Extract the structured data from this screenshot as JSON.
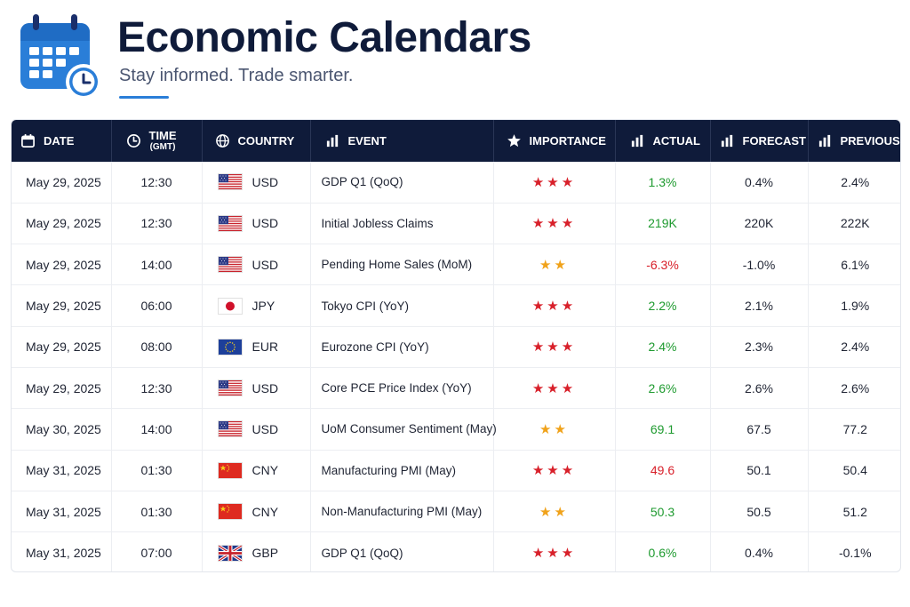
{
  "header": {
    "title": "Economic Calendars",
    "subtitle": "Stay informed. Trade smarter."
  },
  "colors": {
    "header_bg": "#0f1b3a",
    "accent": "#2a7ed8",
    "positive": "#1e9a2f",
    "negative": "#d8202a",
    "star_high": "#d8202a",
    "star_medium": "#f0a21a"
  },
  "table": {
    "columns": [
      {
        "label": "DATE",
        "icon": "calendar-icon"
      },
      {
        "label": "TIME",
        "sublabel": "(GMT)",
        "icon": "clock-icon"
      },
      {
        "label": "COUNTRY",
        "icon": "globe-icon"
      },
      {
        "label": "EVENT",
        "icon": "bar-chart-icon"
      },
      {
        "label": "IMPORTANCE",
        "icon": "star-icon"
      },
      {
        "label": "ACTUAL",
        "icon": "bar-chart-icon"
      },
      {
        "label": "FORECAST",
        "icon": "bar-chart-icon"
      },
      {
        "label": "PREVIOUS",
        "icon": "bar-chart-icon"
      }
    ],
    "rows": [
      {
        "date": "May 29, 2025",
        "time": "12:30",
        "flag": "us-flag",
        "country": "USD",
        "event": "GDP Q1 (QoQ)",
        "stars": "★★★",
        "importance": "high",
        "actual": "1.3%",
        "actual_trend": "pos",
        "forecast": "0.4%",
        "previous": "2.4%"
      },
      {
        "date": "May 29, 2025",
        "time": "12:30",
        "flag": "us-flag",
        "country": "USD",
        "event": "Initial Jobless Claims",
        "stars": "★★★",
        "importance": "high",
        "actual": "219K",
        "actual_trend": "pos",
        "forecast": "220K",
        "previous": "222K"
      },
      {
        "date": "May 29, 2025",
        "time": "14:00",
        "flag": "us-flag",
        "country": "USD",
        "event": "Pending Home Sales (MoM)",
        "stars": "★★",
        "importance": "medium",
        "actual": "-6.3%",
        "actual_trend": "neg",
        "forecast": "-1.0%",
        "previous": "6.1%"
      },
      {
        "date": "May 29, 2025",
        "time": "06:00",
        "flag": "jp-flag",
        "country": "JPY",
        "event": "Tokyo CPI (YoY)",
        "stars": "★★★",
        "importance": "high",
        "actual": "2.2%",
        "actual_trend": "pos",
        "forecast": "2.1%",
        "previous": "1.9%"
      },
      {
        "date": "May 29, 2025",
        "time": "08:00",
        "flag": "eu-flag",
        "country": "EUR",
        "event": "Eurozone CPI (YoY)",
        "stars": "★★★",
        "importance": "high",
        "actual": "2.4%",
        "actual_trend": "pos",
        "forecast": "2.3%",
        "previous": "2.4%"
      },
      {
        "date": "May 29, 2025",
        "time": "12:30",
        "flag": "us-flag",
        "country": "USD",
        "event": "Core PCE Price Index (YoY)",
        "stars": "★★★",
        "importance": "high",
        "actual": "2.6%",
        "actual_trend": "pos",
        "forecast": "2.6%",
        "previous": "2.6%"
      },
      {
        "date": "May 30, 2025",
        "time": "14:00",
        "flag": "us-flag",
        "country": "USD",
        "event": "UoM Consumer Sentiment (May)",
        "stars": "★★",
        "importance": "medium",
        "actual": "69.1",
        "actual_trend": "pos",
        "forecast": "67.5",
        "previous": "77.2"
      },
      {
        "date": "May 31, 2025",
        "time": "01:30",
        "flag": "cn-flag",
        "country": "CNY",
        "event": "Manufacturing PMI (May)",
        "stars": "★★★",
        "importance": "high",
        "actual": "49.6",
        "actual_trend": "neg",
        "forecast": "50.1",
        "previous": "50.4"
      },
      {
        "date": "May 31, 2025",
        "time": "01:30",
        "flag": "cn-flag",
        "country": "CNY",
        "event": "Non-Manufacturing PMI (May)",
        "stars": "★★",
        "importance": "medium",
        "actual": "50.3",
        "actual_trend": "pos",
        "forecast": "50.5",
        "previous": "51.2"
      },
      {
        "date": "May 31, 2025",
        "time": "07:00",
        "flag": "gb-flag",
        "country": "GBP",
        "event": "GDP Q1 (QoQ)",
        "stars": "★★★",
        "importance": "high",
        "actual": "0.6%",
        "actual_trend": "pos",
        "forecast": "0.4%",
        "previous": "-0.1%"
      }
    ]
  }
}
